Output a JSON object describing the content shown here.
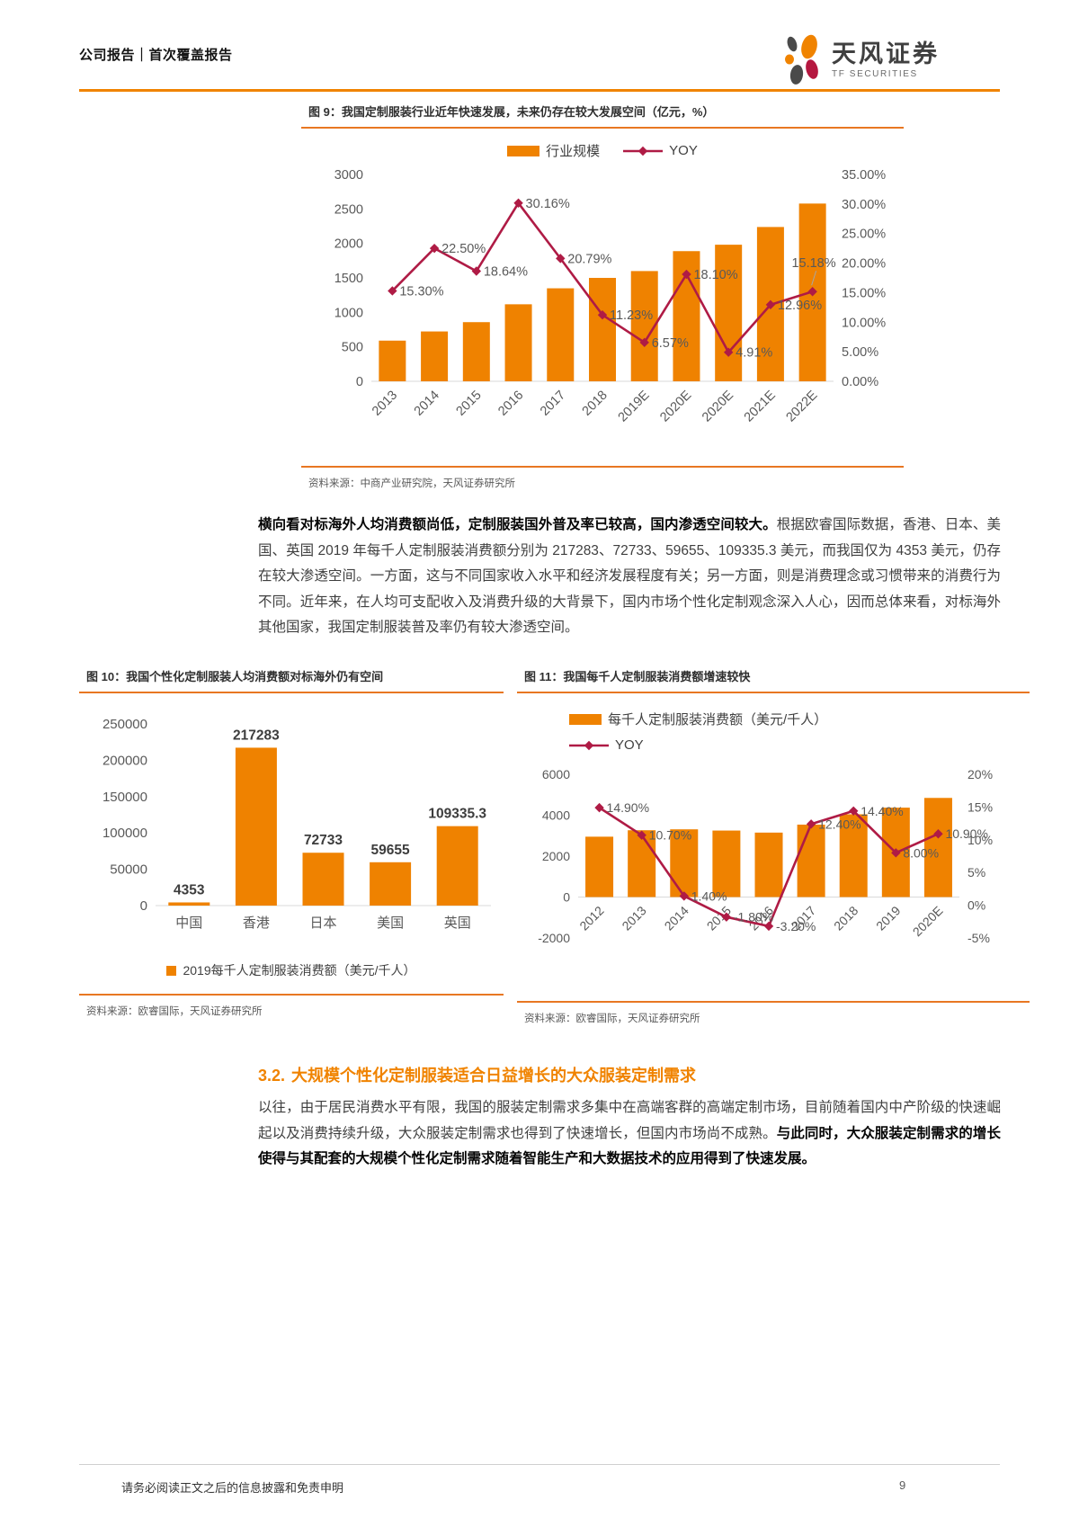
{
  "header": {
    "breadcrumb": "公司报告｜首次覆盖报告",
    "brand_cn": "天风证券",
    "brand_en": "TF SECURITIES"
  },
  "footer": {
    "disclaimer": "请务必阅读正文之后的信息披露和免责申明",
    "page_number": "9"
  },
  "section": {
    "number": "3.2.",
    "title": "大规模个性化定制服装适合日益增长的大众服装定制需求"
  },
  "paragraph1": {
    "bold": "横向看对标海外人均消费额尚低，定制服装国外普及率已较高，国内渗透空间较大。",
    "rest": "根据欧睿国际数据，香港、日本、美国、英国 2019 年每千人定制服装消费额分别为 217283、72733、59655、109335.3 美元，而我国仅为 4353 美元，仍存在较大渗透空间。一方面，这与不同国家收入水平和经济发展程度有关；另一方面，则是消费理念或习惯带来的消费行为不同。近年来，在人均可支配收入及消费升级的大背景下，国内市场个性化定制观念深入人心，因而总体来看，对标海外其他国家，我国定制服装普及率仍有较大渗透空间。"
  },
  "paragraph2": {
    "normal": "以往，由于居民消费水平有限，我国的服装定制需求多集中在高端客群的高端定制市场，目前随着国内中产阶级的快速崛起以及消费持续升级，大众服装定制需求也得到了快速增长，但国内市场尚不成熟。",
    "bold": "与此同时，大众服装定制需求的增长使得与其配套的大规模个性化定制需求随着智能生产和大数据技术的应用得到了快速发展。"
  },
  "colors": {
    "bar_orange": "#EF8200",
    "line_red": "#AF1B45",
    "rule_orange": "#E87722",
    "accent_orange": "#F08300"
  },
  "chart_data": [
    {
      "id": "chart9",
      "type": "bar+line",
      "title": "图 9：我国定制服装行业近年快速发展，未来仍存在较大发展空间（亿元，%）",
      "source": "资料来源：中商产业研究院，天风证券研究所",
      "categories": [
        "2013",
        "2014",
        "2015",
        "2016",
        "2017",
        "2018",
        "2019E",
        "2020E",
        "2020E",
        "2021E",
        "2022E"
      ],
      "series": [
        {
          "name": "行业规模",
          "type": "bar",
          "axis": "left",
          "values": [
            590,
            723,
            858,
            1117,
            1349,
            1500,
            1599,
            1888,
            1981,
            2238,
            2578
          ]
        },
        {
          "name": "YOY",
          "type": "line",
          "axis": "right",
          "values": [
            15.3,
            22.5,
            18.64,
            30.16,
            20.79,
            11.23,
            6.57,
            18.1,
            4.91,
            12.96,
            15.18
          ],
          "labels": [
            "15.30%",
            "22.50%",
            "18.64%",
            "30.16%",
            "20.79%",
            "11.23%",
            "6.57%",
            "18.10%",
            "4.91%",
            "12.96%",
            "15.18%"
          ]
        }
      ],
      "left_axis": {
        "min": 0,
        "max": 3000,
        "step": 500,
        "labels": [
          "0",
          "500",
          "1000",
          "1500",
          "2000",
          "2500",
          "3000"
        ]
      },
      "right_axis": {
        "min": 0,
        "max": 35,
        "step": 5,
        "labels": [
          "0.00%",
          "5.00%",
          "10.00%",
          "15.00%",
          "20.00%",
          "25.00%",
          "30.00%",
          "35.00%"
        ]
      },
      "legend": [
        {
          "label": "行业规模",
          "swatch": "bar"
        },
        {
          "label": "YOY",
          "swatch": "line"
        }
      ],
      "grid": false,
      "legend_position": "top-center"
    },
    {
      "id": "chart10",
      "type": "bar",
      "title": "图 10：我国个性化定制服装人均消费额对标海外仍有空间",
      "source": "资料来源：欧睿国际，天风证券研究所",
      "categories": [
        "中国",
        "香港",
        "日本",
        "美国",
        "英国"
      ],
      "series": [
        {
          "name": "2019每千人定制服装消费额（美元/千人）",
          "type": "bar",
          "axis": "left",
          "values": [
            4353,
            217283,
            72733,
            59655,
            109335.3
          ],
          "labels": [
            "4353",
            "217283",
            "72733",
            "59655",
            "109335.3"
          ]
        }
      ],
      "left_axis": {
        "min": 0,
        "max": 250000,
        "step": 50000,
        "labels": [
          "0",
          "50000",
          "100000",
          "150000",
          "200000",
          "250000"
        ]
      },
      "legend": [
        {
          "label": "2019每千人定制服装消费额（美元/千人）",
          "swatch": "square"
        }
      ],
      "grid": false,
      "legend_position": "bottom-center"
    },
    {
      "id": "chart11",
      "type": "bar+line",
      "title": "图 11：我国每千人定制服装消费额增速较快",
      "source": "资料来源：欧睿国际，天风证券研究所",
      "categories": [
        "2012",
        "2013",
        "2014",
        "2015",
        "2016",
        "2017",
        "2018",
        "2019",
        "2020E"
      ],
      "series": [
        {
          "name": "每千人定制服装消费额（美元/千人）",
          "type": "bar",
          "axis": "left",
          "values": [
            2950,
            3265,
            3310,
            3250,
            3150,
            3540,
            4045,
            4370,
            4845
          ]
        },
        {
          "name": "YOY",
          "type": "line",
          "axis": "right",
          "values": [
            14.9,
            10.7,
            1.4,
            -1.8,
            -3.2,
            12.4,
            14.4,
            8.0,
            10.9
          ],
          "labels": [
            "14.90%",
            "10.70%",
            "1.40%",
            "-1.80%",
            "-3.20%",
            "12.40%",
            "14.40%",
            "8.00%",
            "10.90%"
          ]
        }
      ],
      "left_axis": {
        "min": -2000,
        "max": 6000,
        "step": 2000,
        "labels": [
          "-2000",
          "0",
          "2000",
          "4000",
          "6000"
        ]
      },
      "right_axis": {
        "min": -5,
        "max": 20,
        "step": 5,
        "labels": [
          "-5%",
          "0%",
          "5%",
          "10%",
          "15%",
          "20%"
        ]
      },
      "legend": [
        {
          "label": "每千人定制服装消费额（美元/千人）",
          "swatch": "bar"
        },
        {
          "label": "YOY",
          "swatch": "line"
        }
      ],
      "grid": false,
      "legend_position": "top-left"
    }
  ]
}
